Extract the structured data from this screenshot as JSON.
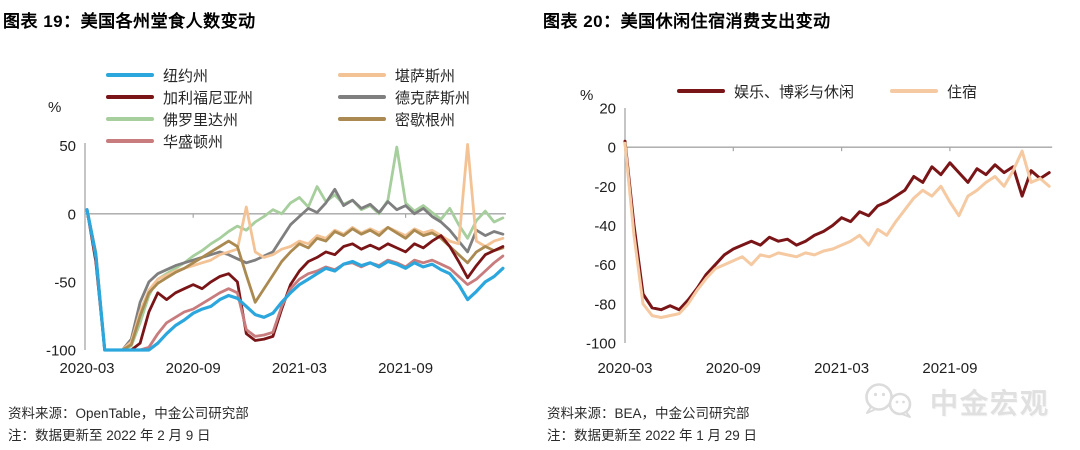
{
  "watermark": {
    "text": "中金宏观",
    "icon": "wechat-bubbles-icon"
  },
  "charts": [
    {
      "title": "图表 19：美国各州堂食人数变动",
      "unit": "%",
      "source": "资料来源：OpenTable，中金公司研究部",
      "note": "注：数据更新至 2022 年 2 月 9 日",
      "chart_data": {
        "type": "line",
        "x": {
          "unit": "months-since-2020-01",
          "start": 2,
          "step": 0.5
        },
        "xticks": [
          {
            "pos": 2,
            "label": "2020-03"
          },
          {
            "pos": 8,
            "label": "2020-09"
          },
          {
            "pos": 14,
            "label": "2021-03"
          },
          {
            "pos": 20,
            "label": "2021-09"
          }
        ],
        "yticks": [
          50,
          0,
          -50,
          -100
        ],
        "ylim": [
          -100,
          52
        ],
        "grid": "zero-line-only",
        "legend_position": "top",
        "series": [
          {
            "name": "纽约州",
            "color": "#2BA7DE",
            "values": [
              3,
              -30,
              -100,
              -100,
              -100,
              -100,
              -100,
              -100,
              -95,
              -88,
              -82,
              -78,
              -73,
              -70,
              -68,
              -63,
              -60,
              -62,
              -68,
              -74,
              -76,
              -73,
              -65,
              -58,
              -52,
              -48,
              -44,
              -40,
              -42,
              -37,
              -35,
              -38,
              -36,
              -39,
              -35,
              -37,
              -40,
              -36,
              -39,
              -37,
              -41,
              -44,
              -52,
              -63,
              -57,
              -50,
              -46,
              -40
            ]
          },
          {
            "name": "加利福尼亚州",
            "color": "#7A1517",
            "values": [
              3,
              -35,
              -100,
              -100,
              -100,
              -100,
              -95,
              -72,
              -58,
              -63,
              -58,
              -55,
              -52,
              -55,
              -50,
              -46,
              -44,
              -50,
              -88,
              -93,
              -92,
              -90,
              -70,
              -52,
              -42,
              -35,
              -32,
              -28,
              -30,
              -24,
              -22,
              -26,
              -23,
              -26,
              -22,
              -25,
              -28,
              -22,
              -25,
              -20,
              -16,
              -24,
              -35,
              -47,
              -38,
              -30,
              -27,
              -24
            ]
          },
          {
            "name": "佛罗里达州",
            "color": "#A7CE9D",
            "values": [
              3,
              -30,
              -100,
              -100,
              -100,
              -97,
              -80,
              -60,
              -48,
              -44,
              -40,
              -36,
              -31,
              -27,
              -22,
              -18,
              -13,
              -9,
              -12,
              -6,
              -2,
              3,
              0,
              8,
              12,
              5,
              20,
              9,
              14,
              7,
              10,
              3,
              6,
              0,
              10,
              49,
              8,
              2,
              6,
              1,
              -4,
              4,
              -8,
              -18,
              -5,
              2,
              -6,
              -3
            ]
          },
          {
            "name": "华盛顿州",
            "color": "#C87C7D",
            "values": [
              3,
              -32,
              -100,
              -100,
              -100,
              -100,
              -100,
              -98,
              -88,
              -80,
              -76,
              -72,
              -70,
              -66,
              -62,
              -58,
              -55,
              -58,
              -85,
              -90,
              -89,
              -87,
              -68,
              -55,
              -48,
              -44,
              -42,
              -39,
              -41,
              -37,
              -36,
              -39,
              -36,
              -38,
              -34,
              -36,
              -39,
              -34,
              -36,
              -34,
              -37,
              -40,
              -46,
              -52,
              -48,
              -42,
              -36,
              -31
            ]
          },
          {
            "name": "堪萨斯州",
            "color": "#F3C396",
            "values": [
              3,
              -28,
              -100,
              -100,
              -100,
              -94,
              -72,
              -56,
              -48,
              -45,
              -42,
              -40,
              -38,
              -36,
              -34,
              -30,
              -28,
              -26,
              5,
              -28,
              -32,
              -30,
              -26,
              -24,
              -20,
              -22,
              -16,
              -18,
              -12,
              -15,
              -10,
              -14,
              -11,
              -14,
              -10,
              -13,
              -16,
              -11,
              -14,
              -12,
              -16,
              -20,
              -22,
              51,
              -20,
              -24,
              -20,
              -18
            ]
          },
          {
            "name": "德克萨斯州",
            "color": "#7F7F7F",
            "values": [
              3,
              -30,
              -100,
              -100,
              -100,
              -92,
              -65,
              -50,
              -44,
              -41,
              -38,
              -36,
              -34,
              -32,
              -30,
              -28,
              -30,
              -33,
              -36,
              -34,
              -31,
              -28,
              -18,
              -8,
              -2,
              4,
              1,
              8,
              18,
              6,
              10,
              4,
              7,
              1,
              9,
              3,
              6,
              0,
              4,
              -2,
              -6,
              -12,
              -20,
              -28,
              -12,
              -16,
              -13,
              -15
            ]
          },
          {
            "name": "密歇根州",
            "color": "#AB8A51",
            "values": [
              3,
              -29,
              -100,
              -100,
              -100,
              -96,
              -75,
              -58,
              -51,
              -47,
              -43,
              -40,
              -36,
              -32,
              -28,
              -24,
              -20,
              -24,
              -45,
              -65,
              -55,
              -45,
              -35,
              -28,
              -22,
              -25,
              -18,
              -20,
              -13,
              -16,
              -11,
              -15,
              -12,
              -16,
              -10,
              -14,
              -18,
              -12,
              -16,
              -14,
              -18,
              -24,
              -30,
              -36,
              -28,
              -24,
              -27,
              -25
            ]
          }
        ]
      }
    },
    {
      "title": "图表 20：美国休闲住宿消费支出变动",
      "unit": "%",
      "source": "资料来源：BEA，中金公司研究部",
      "note": "注：数据更新至 2022 年 1 月 29 日",
      "chart_data": {
        "type": "line",
        "x": {
          "unit": "months-since-2020-01",
          "start": 2,
          "step": 0.5
        },
        "xticks": [
          {
            "pos": 2,
            "label": "2020-03"
          },
          {
            "pos": 8,
            "label": "2020-09"
          },
          {
            "pos": 14,
            "label": "2021-03"
          },
          {
            "pos": 20,
            "label": "2021-09"
          }
        ],
        "yticks": [
          20,
          0,
          -20,
          -40,
          -60,
          -80,
          -100
        ],
        "ylim": [
          -100,
          20
        ],
        "grid": "zero-line-only",
        "legend_position": "top",
        "series": [
          {
            "name": "娱乐、博彩与休闲",
            "color": "#7A1517",
            "values": [
              3,
              -40,
              -75,
              -82,
              -83,
              -81,
              -83,
              -78,
              -72,
              -65,
              -60,
              -55,
              -52,
              -50,
              -48,
              -50,
              -46,
              -48,
              -47,
              -50,
              -48,
              -45,
              -43,
              -40,
              -36,
              -38,
              -33,
              -35,
              -30,
              -28,
              -25,
              -22,
              -15,
              -18,
              -10,
              -14,
              -8,
              -13,
              -18,
              -11,
              -14,
              -9,
              -13,
              -10,
              -25,
              -12,
              -16,
              -13
            ]
          },
          {
            "name": "住宿",
            "color": "#F5C9A1",
            "values": [
              2,
              -45,
              -80,
              -86,
              -87,
              -86,
              -85,
              -80,
              -73,
              -67,
              -62,
              -60,
              -58,
              -56,
              -60,
              -55,
              -56,
              -54,
              -55,
              -56,
              -54,
              -55,
              -53,
              -52,
              -50,
              -48,
              -45,
              -50,
              -42,
              -45,
              -38,
              -32,
              -26,
              -22,
              -25,
              -20,
              -28,
              -35,
              -25,
              -22,
              -18,
              -15,
              -20,
              -12,
              -2,
              -18,
              -16,
              -20
            ]
          }
        ]
      }
    }
  ]
}
